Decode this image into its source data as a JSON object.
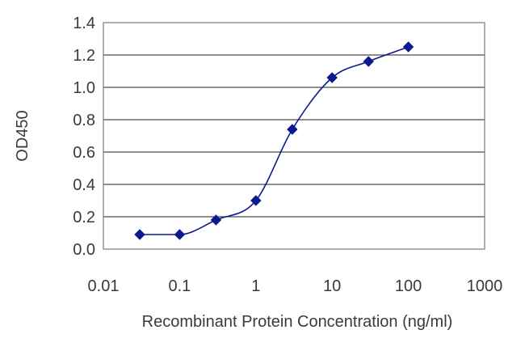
{
  "chart_data": {
    "type": "line",
    "title": "",
    "xlabel": "Recombinant Protein Concentration (ng/ml)",
    "ylabel": "OD450",
    "x_scale": "log",
    "xlim": [
      0.01,
      1000
    ],
    "ylim": [
      0.0,
      1.4
    ],
    "x_ticks": [
      "0.01",
      "0.1",
      "1",
      "10",
      "100",
      "1000"
    ],
    "y_ticks": [
      "0.0",
      "0.2",
      "0.4",
      "0.6",
      "0.8",
      "1.0",
      "1.2",
      "1.4"
    ],
    "grid": "horizontal",
    "series": [
      {
        "x": [
          0.03,
          0.1,
          0.3,
          1,
          3,
          10,
          30,
          100
        ],
        "y": [
          0.09,
          0.09,
          0.18,
          0.3,
          0.74,
          1.06,
          1.16,
          1.25
        ]
      }
    ],
    "colors": {
      "series": "#0b1a8c",
      "grid": "#4a4a4a",
      "frame": "#7a7a7a"
    }
  }
}
